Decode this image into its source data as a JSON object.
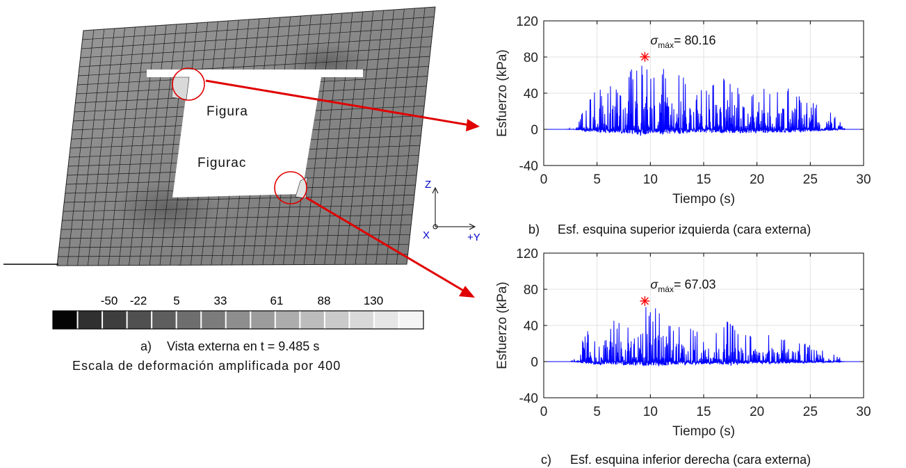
{
  "model": {
    "hole_label_top": "Figura",
    "hole_label_bottom": "Figurac",
    "axes": {
      "z": "Z",
      "x": "X",
      "y": "+Y"
    }
  },
  "scale": {
    "labels": [
      "-50",
      "-22",
      "5",
      "33",
      "61",
      "88",
      "130"
    ],
    "colors": [
      "#050505",
      "#303030",
      "#3e3e3e",
      "#505050",
      "#5e5e5e",
      "#6e6e6e",
      "#7c7c7c",
      "#8e8e8e",
      "#9c9c9c",
      "#acacac",
      "#bcbcbc",
      "#cacaca",
      "#d8d8d8",
      "#e6e6e6",
      "#f4f4f4"
    ]
  },
  "captions": {
    "a_letter": "a)",
    "a_text": "Vista externa en t = 9.485 s",
    "scale_note": "Escala de deformación amplificada por 400",
    "b_letter": "b)",
    "b_text": "Esf. esquina superior izquierda (cara externa)",
    "c_letter": "c)",
    "c_text": "Esf. esquina inferior derecha (cara externa)"
  },
  "chart_data": [
    {
      "type": "line",
      "xlabel": "Tiempo (s)",
      "ylabel": "Esfuerzo (kPa)",
      "xlim": [
        0,
        30
      ],
      "ylim": [
        -40,
        120
      ],
      "xticks": [
        0,
        5,
        10,
        15,
        20,
        25,
        30
      ],
      "yticks": [
        -40,
        0,
        40,
        80,
        120
      ],
      "grid": true,
      "series_color": "#0000ff",
      "x": [
        0,
        2.0,
        3.0,
        4.0,
        5.0,
        6.0,
        7.0,
        8.0,
        9.0,
        9.485,
        10.0,
        11.0,
        12.0,
        13.0,
        14.0,
        15.0,
        16.0,
        17.4,
        18.0,
        19.0,
        20.0,
        21.0,
        22.0,
        23.0,
        24.0,
        25.0,
        26.0,
        27.0,
        28.0,
        28.3,
        30
      ],
      "y": [
        0,
        0,
        3,
        28,
        46,
        52,
        45,
        66,
        70,
        80.16,
        58,
        76,
        58,
        66,
        38,
        46,
        54,
        60,
        48,
        54,
        36,
        52,
        42,
        50,
        38,
        32,
        24,
        18,
        6,
        0,
        0
      ],
      "peak": {
        "x": 9.485,
        "y": 80.16
      },
      "annotation_symbol": "σ",
      "annotation_sub": "máx",
      "annotation_value": "= 80.16"
    },
    {
      "type": "line",
      "xlabel": "Tiempo (s)",
      "ylabel": "Esfuerzo (kPa)",
      "xlim": [
        0,
        30
      ],
      "ylim": [
        -40,
        120
      ],
      "xticks": [
        0,
        5,
        10,
        15,
        20,
        25,
        30
      ],
      "yticks": [
        -40,
        0,
        40,
        80,
        120
      ],
      "grid": true,
      "series_color": "#0000ff",
      "x": [
        0,
        2.5,
        3.0,
        4.0,
        5.0,
        6.0,
        7.0,
        8.0,
        9.0,
        9.485,
        10.0,
        11.0,
        12.0,
        13.0,
        14.0,
        15.0,
        16.0,
        17.4,
        18.0,
        19.0,
        20.0,
        21.0,
        22.0,
        23.0,
        24.0,
        25.0,
        26.0,
        27.0,
        28.0,
        28.3,
        30
      ],
      "y": [
        0,
        0,
        4,
        38,
        42,
        44,
        46,
        50,
        58,
        67.03,
        56,
        66,
        46,
        40,
        36,
        40,
        38,
        48,
        34,
        32,
        26,
        30,
        26,
        28,
        22,
        18,
        14,
        10,
        4,
        0,
        0
      ],
      "peak": {
        "x": 9.485,
        "y": 67.03
      },
      "annotation_symbol": "σ",
      "annotation_sub": "máx",
      "annotation_value": "= 67.03"
    }
  ]
}
